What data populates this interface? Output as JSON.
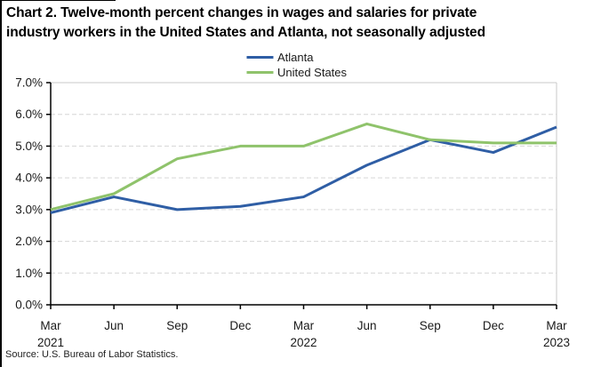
{
  "title": {
    "line1": "Chart 2. Twelve-month percent changes in wages and salaries for private",
    "line2": "industry workers in the United States and Atlanta, not seasonally adjusted"
  },
  "source_note": "Source: U.S. Bureau of Labor Statistics.",
  "legend": {
    "position": "top-center",
    "items": [
      {
        "label": "Atlanta",
        "color": "#2F5EA5"
      },
      {
        "label": "United States",
        "color": "#8FC36B"
      }
    ]
  },
  "chart_data": {
    "type": "line",
    "title": "Chart 2. Twelve-month percent changes in wages and salaries for private industry workers in the United States and Atlanta, not seasonally adjusted",
    "xlabel": "",
    "ylabel": "",
    "ylim": [
      0,
      7
    ],
    "ytick_step": 1,
    "ytick_labels": [
      "0.0%",
      "1.0%",
      "2.0%",
      "3.0%",
      "4.0%",
      "5.0%",
      "6.0%",
      "7.0%"
    ],
    "grid": "horizontal-dashed",
    "legend_position": "top-center",
    "categories": [
      {
        "month": "Mar",
        "year": "2021"
      },
      {
        "month": "Jun",
        "year": ""
      },
      {
        "month": "Sep",
        "year": ""
      },
      {
        "month": "Dec",
        "year": ""
      },
      {
        "month": "Mar",
        "year": "2022"
      },
      {
        "month": "Jun",
        "year": ""
      },
      {
        "month": "Sep",
        "year": ""
      },
      {
        "month": "Dec",
        "year": ""
      },
      {
        "month": "Mar",
        "year": "2023"
      }
    ],
    "series": [
      {
        "name": "Atlanta",
        "color": "#2F5EA5",
        "values": [
          2.9,
          3.4,
          3.0,
          3.1,
          3.4,
          4.4,
          5.2,
          4.8,
          5.6
        ]
      },
      {
        "name": "United States",
        "color": "#8FC36B",
        "values": [
          3.0,
          3.5,
          4.6,
          5.0,
          5.0,
          5.7,
          5.2,
          5.1,
          5.1
        ]
      }
    ],
    "styles": {
      "gridline_color": "#D6D6D6",
      "plot_border_color": "#C9C9C9",
      "axis_color": "#000000",
      "tick_label_color": "#1a1a1a",
      "line_width": 3
    }
  }
}
